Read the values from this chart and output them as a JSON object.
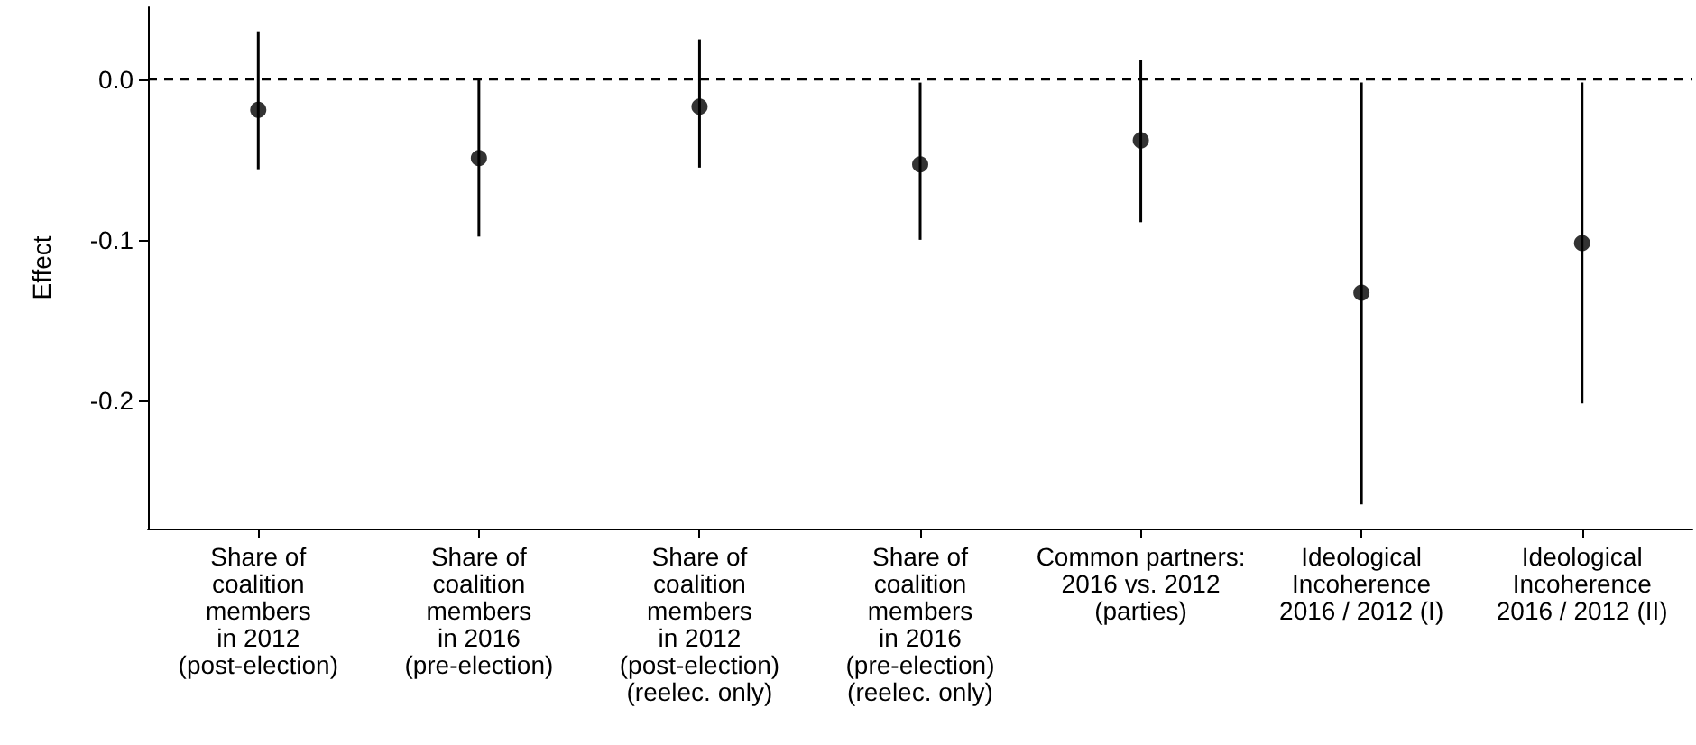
{
  "chart_data": {
    "type": "scatter",
    "ylabel": "Effect",
    "categories": [
      "Share of\ncoalition\nmembers\nin 2012\n(post-election)",
      "Share of\ncoalition\nmembers\nin 2016\n(pre-election)",
      "Share of\ncoalition\nmembers\nin 2012\n(post-election)\n(reelec. only)",
      "Share of\ncoalition\nmembers\nin 2016\n(pre-election)\n(reelec. only)",
      "Common partners:\n2016 vs. 2012\n(parties)",
      "Ideological\nIncoherence\n2016 / 2012 (I)",
      "Ideological\nIncoherence\n2016 / 2012 (II)"
    ],
    "series": [
      {
        "color": "#000000",
        "values": [
          -0.019,
          -0.049,
          -0.017,
          -0.053,
          -0.038,
          -0.133,
          -0.102
        ],
        "errors": [
          [
            -0.056,
            0.03
          ],
          [
            -0.098,
            0.0
          ],
          [
            -0.055,
            0.025
          ],
          [
            -0.1,
            -0.002
          ],
          [
            -0.089,
            0.012
          ],
          [
            -0.265,
            -0.002
          ],
          [
            -0.202,
            -0.002
          ]
        ]
      }
    ],
    "ylim": [
      -0.28,
      0.045
    ],
    "yticks": [
      -0.2,
      -0.1,
      {
        "value": 0,
        "label": "0.0"
      }
    ],
    "ref_lines": [
      {
        "axis": "y",
        "value": 0,
        "line_style": "dashed",
        "color": "#000000"
      }
    ],
    "grid": false,
    "marker": "circle"
  }
}
